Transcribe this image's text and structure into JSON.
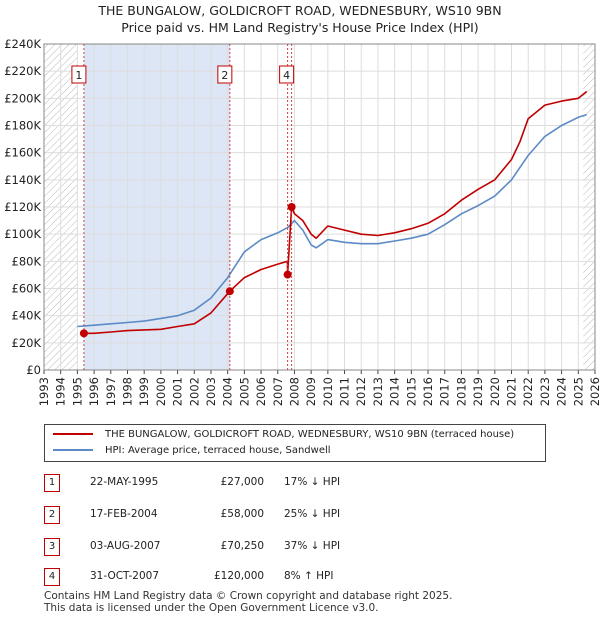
{
  "title": {
    "line1": "THE BUNGALOW, GOLDICROFT ROAD, WEDNESBURY, WS10 9BN",
    "line2": "Price paid vs. HM Land Registry's House Price Index (HPI)"
  },
  "colors": {
    "property_line": "#c00000",
    "hpi_line": "#5b8ac6",
    "highlight": "#dde6f5",
    "grid": "#dddddd",
    "marker_vline": "#d04040"
  },
  "chart_data": {
    "type": "line",
    "xlim": [
      1993,
      2026
    ],
    "ylim": [
      0,
      240000
    ],
    "x_ticks": [
      "1993",
      "1994",
      "1995",
      "1996",
      "1997",
      "1998",
      "1999",
      "2000",
      "2001",
      "2002",
      "2003",
      "2004",
      "2005",
      "2006",
      "2007",
      "2008",
      "2009",
      "2010",
      "2011",
      "2012",
      "2013",
      "2014",
      "2015",
      "2016",
      "2017",
      "2018",
      "2019",
      "2020",
      "2021",
      "2022",
      "2023",
      "2024",
      "2025",
      "2026"
    ],
    "y_ticks": [
      {
        "value": 0,
        "label": "£0"
      },
      {
        "value": 20000,
        "label": "£20K"
      },
      {
        "value": 40000,
        "label": "£40K"
      },
      {
        "value": 60000,
        "label": "£60K"
      },
      {
        "value": 80000,
        "label": "£80K"
      },
      {
        "value": 100000,
        "label": "£100K"
      },
      {
        "value": 120000,
        "label": "£120K"
      },
      {
        "value": 140000,
        "label": "£140K"
      },
      {
        "value": 160000,
        "label": "£160K"
      },
      {
        "value": 180000,
        "label": "£180K"
      },
      {
        "value": 200000,
        "label": "£200K"
      },
      {
        "value": 220000,
        "label": "£220K"
      },
      {
        "value": 240000,
        "label": "£240K"
      }
    ],
    "hatched_ranges": [
      [
        1993,
        1995.0
      ],
      [
        2025.3,
        2026
      ]
    ],
    "highlight_range": [
      1995.39,
      2004.13
    ],
    "series": [
      {
        "name": "THE BUNGALOW, GOLDICROFT ROAD, WEDNESBURY, WS10 9BN (terraced house)",
        "color": "#c00000",
        "x": [
          1995.39,
          1996,
          1997,
          1998,
          1999,
          2000,
          2001,
          2002,
          2003,
          2004.13,
          2005,
          2006,
          2007,
          2007.58,
          2007.59,
          2007.83,
          2008,
          2008.5,
          2009,
          2009.3,
          2010,
          2011,
          2012,
          2013,
          2014,
          2015,
          2016,
          2017,
          2018,
          2019,
          2020,
          2021,
          2021.5,
          2022,
          2023,
          2024,
          2025,
          2025.5
        ],
        "y": [
          27000,
          27000,
          28000,
          29000,
          29500,
          30000,
          32000,
          34000,
          42000,
          58000,
          68000,
          74000,
          78000,
          80000,
          70250,
          120000,
          115000,
          110000,
          100000,
          97000,
          106000,
          103000,
          100000,
          99000,
          101000,
          104000,
          108000,
          115000,
          125000,
          133000,
          140000,
          155000,
          168000,
          185000,
          195000,
          198000,
          200000,
          205000
        ]
      },
      {
        "name": "HPI: Average price, terraced house, Sandwell",
        "color": "#5b8ac6",
        "x": [
          1995,
          1996,
          1997,
          1998,
          1999,
          2000,
          2001,
          2002,
          2003,
          2004,
          2005,
          2006,
          2007,
          2007.6,
          2008,
          2008.5,
          2009,
          2009.3,
          2010,
          2011,
          2012,
          2013,
          2014,
          2015,
          2016,
          2017,
          2018,
          2019,
          2020,
          2021,
          2022,
          2023,
          2024,
          2025,
          2025.5
        ],
        "y": [
          32000,
          33000,
          34000,
          35000,
          36000,
          38000,
          40000,
          44000,
          53000,
          68000,
          87000,
          96000,
          101000,
          105000,
          110000,
          103000,
          92000,
          90000,
          96000,
          94000,
          93000,
          93000,
          95000,
          97000,
          100000,
          107000,
          115000,
          121000,
          128000,
          140000,
          158000,
          172000,
          180000,
          186000,
          188000
        ]
      }
    ],
    "sales": [
      {
        "label": "1",
        "x": 1995.39,
        "y": 27000
      },
      {
        "label": "2",
        "x": 2004.13,
        "y": 58000
      },
      {
        "label": "3",
        "x": 2007.59,
        "y": 70250
      },
      {
        "label": "4",
        "x": 2007.83,
        "y": 120000
      }
    ],
    "marker_boxes": [
      "1",
      "2",
      "4"
    ]
  },
  "legend": {
    "items": [
      "THE BUNGALOW, GOLDICROFT ROAD, WEDNESBURY, WS10 9BN (terraced house)",
      "HPI: Average price, terraced house, Sandwell"
    ]
  },
  "transactions": [
    {
      "num": "1",
      "date": "22-MAY-1995",
      "price": "£27,000",
      "hpi": "17% ↓ HPI"
    },
    {
      "num": "2",
      "date": "17-FEB-2004",
      "price": "£58,000",
      "hpi": "25% ↓ HPI"
    },
    {
      "num": "3",
      "date": "03-AUG-2007",
      "price": "£70,250",
      "hpi": "37% ↓ HPI"
    },
    {
      "num": "4",
      "date": "31-OCT-2007",
      "price": "£120,000",
      "hpi": "8% ↑ HPI"
    }
  ],
  "footer": {
    "line1": "Contains HM Land Registry data © Crown copyright and database right 2025.",
    "line2": "This data is licensed under the Open Government Licence v3.0."
  }
}
